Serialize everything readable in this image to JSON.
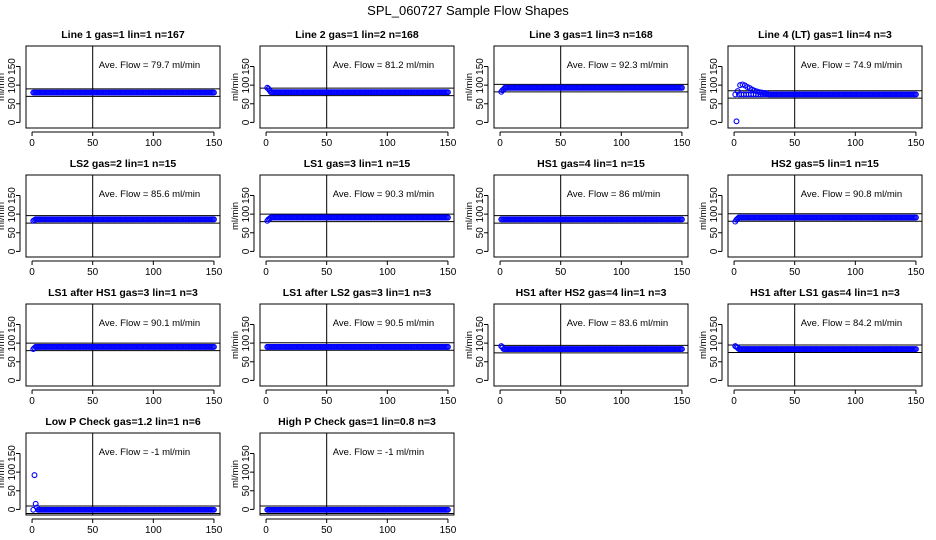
{
  "page_title": "SPL_060727  Sample Flow Shapes",
  "colors": {
    "points": "#0000ff",
    "axes": "#000000",
    "background": "#ffffff"
  },
  "chart_data": [
    {
      "type": "scatter",
      "title": "Line 1 gas=1 lin=1 n=167",
      "ylabel": "ml/min",
      "xticks": [
        0,
        50,
        100,
        150
      ],
      "yticks": [
        0,
        50,
        100,
        150
      ],
      "xlim": [
        -5,
        155
      ],
      "ylim": [
        -15,
        205
      ],
      "avg_label": "Ave. Flow =  79.7  ml/min",
      "hlines": [
        70,
        90
      ],
      "vline": 50,
      "series": [
        {
          "x_start": 1,
          "x_end": 150,
          "step": 1,
          "level": 80,
          "initial": []
        }
      ]
    },
    {
      "type": "scatter",
      "title": "Line 2 gas=1 lin=2 n=168",
      "ylabel": "ml/min",
      "xticks": [
        0,
        50,
        100,
        150
      ],
      "yticks": [
        0,
        50,
        100,
        150
      ],
      "xlim": [
        -5,
        155
      ],
      "ylim": [
        -15,
        205
      ],
      "avg_label": "Ave. Flow =  81.2  ml/min",
      "hlines": [
        72,
        92
      ],
      "vline": 50,
      "series": [
        {
          "x_start": 1,
          "x_end": 150,
          "step": 1,
          "level": 81,
          "initial": [
            [
              1,
              93
            ],
            [
              2,
              90
            ],
            [
              3,
              86
            ]
          ]
        }
      ]
    },
    {
      "type": "scatter",
      "title": "Line 3 gas=1 lin=3 n=168",
      "ylabel": "ml/min",
      "xticks": [
        0,
        50,
        100,
        150
      ],
      "yticks": [
        0,
        50,
        100,
        150
      ],
      "xlim": [
        -5,
        155
      ],
      "ylim": [
        -15,
        205
      ],
      "avg_label": "Ave. Flow =  92.3  ml/min",
      "hlines": [
        82,
        102
      ],
      "vline": 50,
      "series": [
        {
          "x_start": 1,
          "x_end": 150,
          "step": 1,
          "level": 93,
          "initial": [
            [
              1,
              82
            ],
            [
              2,
              86
            ],
            [
              3,
              89
            ]
          ]
        }
      ]
    },
    {
      "type": "scatter",
      "title": "Line 4 (LT) gas=1 lin=4 n=3",
      "ylabel": "ml/min",
      "xticks": [
        0,
        50,
        100,
        150
      ],
      "yticks": [
        0,
        50,
        100,
        150
      ],
      "xlim": [
        -5,
        155
      ],
      "ylim": [
        -15,
        205
      ],
      "avg_label": "Ave. Flow =  74.9  ml/min",
      "hlines": [
        65,
        85
      ],
      "vline": 50,
      "series": [
        {
          "x_start": 1,
          "x_end": 150,
          "step": 1,
          "level": 75,
          "initial": [
            [
              2,
              3
            ],
            [
              3,
              84
            ],
            [
              5,
              100
            ],
            [
              7,
              102
            ],
            [
              9,
              99
            ],
            [
              11,
              95
            ],
            [
              13,
              92
            ],
            [
              15,
              88
            ],
            [
              17,
              85
            ],
            [
              19,
              83
            ],
            [
              21,
              81
            ],
            [
              23,
              80
            ],
            [
              25,
              79
            ],
            [
              27,
              78
            ]
          ]
        }
      ]
    },
    {
      "type": "scatter",
      "title": "LS2 gas=2 lin=1 n=15",
      "ylabel": "ml/min",
      "xticks": [
        0,
        50,
        100,
        150
      ],
      "yticks": [
        0,
        50,
        100,
        150
      ],
      "xlim": [
        -5,
        155
      ],
      "ylim": [
        -15,
        205
      ],
      "avg_label": "Ave. Flow =  85.6  ml/min",
      "hlines": [
        76,
        96
      ],
      "vline": 50,
      "series": [
        {
          "x_start": 1,
          "x_end": 150,
          "step": 1,
          "level": 86,
          "initial": [
            [
              1,
              82
            ],
            [
              2,
              84
            ]
          ]
        }
      ]
    },
    {
      "type": "scatter",
      "title": "LS1 gas=3 lin=1 n=15",
      "ylabel": "ml/min",
      "xticks": [
        0,
        50,
        100,
        150
      ],
      "yticks": [
        0,
        50,
        100,
        150
      ],
      "xlim": [
        -5,
        155
      ],
      "ylim": [
        -15,
        205
      ],
      "avg_label": "Ave. Flow =  90.3  ml/min",
      "hlines": [
        80,
        100
      ],
      "vline": 50,
      "series": [
        {
          "x_start": 1,
          "x_end": 150,
          "step": 1,
          "level": 91,
          "initial": [
            [
              1,
              82
            ],
            [
              2,
              86
            ],
            [
              3,
              88
            ]
          ]
        }
      ]
    },
    {
      "type": "scatter",
      "title": "HS1 gas=4 lin=1 n=15",
      "ylabel": "ml/min",
      "xticks": [
        0,
        50,
        100,
        150
      ],
      "yticks": [
        0,
        50,
        100,
        150
      ],
      "xlim": [
        -5,
        155
      ],
      "ylim": [
        -15,
        205
      ],
      "avg_label": "Ave. Flow =  86  ml/min",
      "hlines": [
        76,
        96
      ],
      "vline": 50,
      "series": [
        {
          "x_start": 1,
          "x_end": 150,
          "step": 1,
          "level": 86,
          "initial": []
        }
      ]
    },
    {
      "type": "scatter",
      "title": "HS2 gas=5 lin=1 n=15",
      "ylabel": "ml/min",
      "xticks": [
        0,
        50,
        100,
        150
      ],
      "yticks": [
        0,
        50,
        100,
        150
      ],
      "xlim": [
        -5,
        155
      ],
      "ylim": [
        -15,
        205
      ],
      "avg_label": "Ave. Flow =  90.8  ml/min",
      "hlines": [
        81,
        101
      ],
      "vline": 50,
      "series": [
        {
          "x_start": 1,
          "x_end": 150,
          "step": 1,
          "level": 91,
          "initial": [
            [
              1,
              80
            ],
            [
              2,
              85
            ],
            [
              3,
              88
            ]
          ]
        }
      ]
    },
    {
      "type": "scatter",
      "title": "LS1 after HS1 gas=3 lin=1 n=3",
      "ylabel": "ml/min",
      "xticks": [
        0,
        50,
        100,
        150
      ],
      "yticks": [
        0,
        50,
        100,
        150
      ],
      "xlim": [
        -5,
        155
      ],
      "ylim": [
        -15,
        205
      ],
      "avg_label": "Ave. Flow =  90.1  ml/min",
      "hlines": [
        80,
        100
      ],
      "vline": 50,
      "series": [
        {
          "x_start": 1,
          "x_end": 150,
          "step": 1,
          "level": 90,
          "initial": [
            [
              1,
              84
            ],
            [
              2,
              87
            ]
          ]
        }
      ]
    },
    {
      "type": "scatter",
      "title": "LS1 after LS2 gas=3 lin=1 n=3",
      "ylabel": "ml/min",
      "xticks": [
        0,
        50,
        100,
        150
      ],
      "yticks": [
        0,
        50,
        100,
        150
      ],
      "xlim": [
        -5,
        155
      ],
      "ylim": [
        -15,
        205
      ],
      "avg_label": "Ave. Flow =  90.5  ml/min",
      "hlines": [
        81,
        101
      ],
      "vline": 50,
      "series": [
        {
          "x_start": 1,
          "x_end": 150,
          "step": 1,
          "level": 90,
          "initial": []
        }
      ]
    },
    {
      "type": "scatter",
      "title": "HS1 after HS2 gas=4 lin=1 n=3",
      "ylabel": "ml/min",
      "xticks": [
        0,
        50,
        100,
        150
      ],
      "yticks": [
        0,
        50,
        100,
        150
      ],
      "xlim": [
        -5,
        155
      ],
      "ylim": [
        -15,
        205
      ],
      "avg_label": "Ave. Flow =  83.6  ml/min",
      "hlines": [
        74,
        94
      ],
      "vline": 50,
      "series": [
        {
          "x_start": 1,
          "x_end": 150,
          "step": 1,
          "level": 84,
          "initial": [
            [
              1,
              92
            ],
            [
              2,
              89
            ]
          ]
        }
      ]
    },
    {
      "type": "scatter",
      "title": "HS1 after LS1 gas=4 lin=1 n=3",
      "ylabel": "ml/min",
      "xticks": [
        0,
        50,
        100,
        150
      ],
      "yticks": [
        0,
        50,
        100,
        150
      ],
      "xlim": [
        -5,
        155
      ],
      "ylim": [
        -15,
        205
      ],
      "avg_label": "Ave. Flow =  84.2  ml/min",
      "hlines": [
        75,
        95
      ],
      "vline": 50,
      "series": [
        {
          "x_start": 1,
          "x_end": 150,
          "step": 1,
          "level": 84,
          "initial": [
            [
              1,
              92
            ],
            [
              2,
              90
            ],
            [
              3,
              88
            ]
          ]
        }
      ]
    },
    {
      "type": "scatter",
      "title": "Low P Check gas=1.2 lin=1 n=6",
      "ylabel": "ml/min",
      "xticks": [
        0,
        50,
        100,
        150
      ],
      "yticks": [
        0,
        50,
        100,
        150
      ],
      "xlim": [
        -5,
        155
      ],
      "ylim": [
        -15,
        205
      ],
      "avg_label": "Ave. Flow =  -1  ml/min",
      "hlines": [
        -11,
        9
      ],
      "vline": 50,
      "series": [
        {
          "x_start": 1,
          "x_end": 150,
          "step": 1,
          "level": -1,
          "initial": [
            [
              2,
              92
            ],
            [
              3,
              15
            ],
            [
              4,
              5
            ]
          ]
        }
      ]
    },
    {
      "type": "scatter",
      "title": "High P Check gas=1 lin=0.8 n=3",
      "ylabel": "ml/min",
      "xticks": [
        0,
        50,
        100,
        150
      ],
      "yticks": [
        0,
        50,
        100,
        150
      ],
      "xlim": [
        -5,
        155
      ],
      "ylim": [
        -15,
        205
      ],
      "avg_label": "Ave. Flow =  -1  ml/min",
      "hlines": [
        -11,
        9
      ],
      "vline": 50,
      "series": [
        {
          "x_start": 1,
          "x_end": 150,
          "step": 1,
          "level": -1,
          "initial": []
        }
      ]
    }
  ]
}
